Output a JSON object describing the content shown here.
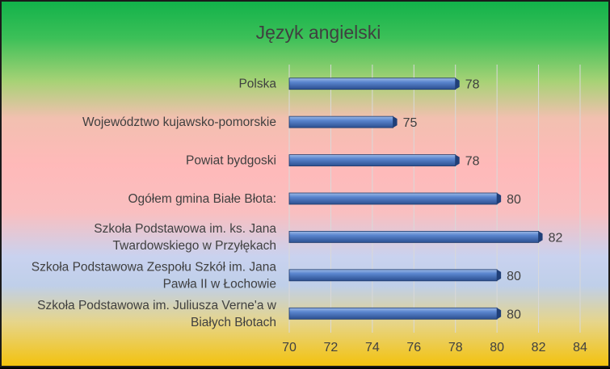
{
  "chart_data": {
    "type": "bar",
    "orientation": "horizontal",
    "title": "Język angielski",
    "categories": [
      "Polska",
      "Województwo kujawsko-pomorskie",
      "Powiat bydgoski",
      "Ogółem gmina Białe Błota:",
      "Szkoła Podstawowa im. ks. Jana Twardowskiego w Przyłękach",
      "Szkoła Podstawowa Zespołu Szkół im. Jana Pawła II w Łochowie",
      "Szkoła Podstawowa im. Juliusza Verne'a w Białych Błotach"
    ],
    "category_lines": [
      [
        "Polska"
      ],
      [
        "Województwo kujawsko-pomorskie"
      ],
      [
        "Powiat bydgoski"
      ],
      [
        "Ogółem gmina Białe Błota:"
      ],
      [
        "Szkoła Podstawowa im. ks. Jana",
        "Twardowskiego w Przyłękach"
      ],
      [
        "Szkoła Podstawowa Zespołu Szkół im. Jana",
        "Pawła II w Łochowie"
      ],
      [
        "Szkoła Podstawowa im. Juliusza Verne'a w",
        "Białych Błotach"
      ]
    ],
    "values": [
      78,
      75,
      78,
      80,
      82,
      80,
      80
    ],
    "data_labels": [
      "78",
      "75",
      "78",
      "80",
      "82",
      "80",
      "80"
    ],
    "xlim": [
      70,
      84
    ],
    "xticks": [
      "70",
      "72",
      "74",
      "76",
      "78",
      "80",
      "82",
      "84"
    ],
    "grid": "vertical",
    "legend": "none",
    "bar_color": "#3d6bb8",
    "xlabel": "",
    "ylabel": ""
  }
}
